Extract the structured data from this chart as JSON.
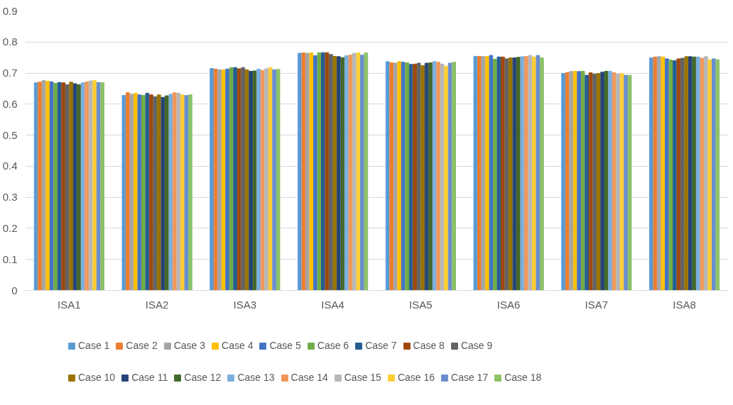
{
  "chart_data": {
    "type": "bar",
    "categories": [
      "ISA1",
      "ISA2",
      "ISA3",
      "ISA4",
      "ISA5",
      "ISA6",
      "ISA7",
      "ISA8"
    ],
    "ylim": [
      0,
      0.9
    ],
    "yticks": [
      0,
      0.1,
      0.2,
      0.3,
      0.4,
      0.5,
      0.6,
      0.7,
      0.8,
      0.9
    ],
    "grid": "y",
    "legend": "bottom",
    "series": [
      {
        "name": "Case 1",
        "color": "#5b9bd5",
        "values": [
          0.669,
          0.628,
          0.715,
          0.764,
          0.737,
          0.754,
          0.699,
          0.749
        ]
      },
      {
        "name": "Case 2",
        "color": "#ed7d31",
        "values": [
          0.671,
          0.637,
          0.713,
          0.765,
          0.733,
          0.754,
          0.702,
          0.752
        ]
      },
      {
        "name": "Case 3",
        "color": "#a5a5a5",
        "values": [
          0.676,
          0.632,
          0.711,
          0.764,
          0.732,
          0.753,
          0.705,
          0.753
        ]
      },
      {
        "name": "Case 4",
        "color": "#ffc000",
        "values": [
          0.674,
          0.635,
          0.71,
          0.765,
          0.737,
          0.754,
          0.706,
          0.752
        ]
      },
      {
        "name": "Case 5",
        "color": "#4472c4",
        "values": [
          0.672,
          0.63,
          0.713,
          0.756,
          0.735,
          0.757,
          0.705,
          0.746
        ]
      },
      {
        "name": "Case 6",
        "color": "#70ad47",
        "values": [
          0.667,
          0.628,
          0.718,
          0.765,
          0.733,
          0.745,
          0.706,
          0.742
        ]
      },
      {
        "name": "Case 7",
        "color": "#255e91",
        "values": [
          0.67,
          0.635,
          0.718,
          0.766,
          0.728,
          0.752,
          0.693,
          0.74
        ]
      },
      {
        "name": "Case 8",
        "color": "#9e480e",
        "values": [
          0.669,
          0.63,
          0.714,
          0.766,
          0.729,
          0.752,
          0.701,
          0.746
        ]
      },
      {
        "name": "Case 9",
        "color": "#636363",
        "values": [
          0.663,
          0.624,
          0.718,
          0.76,
          0.732,
          0.746,
          0.697,
          0.748
        ]
      },
      {
        "name": "Case 10",
        "color": "#997300",
        "values": [
          0.671,
          0.63,
          0.711,
          0.754,
          0.724,
          0.749,
          0.699,
          0.753
        ]
      },
      {
        "name": "Case 11",
        "color": "#264478",
        "values": [
          0.666,
          0.622,
          0.706,
          0.753,
          0.732,
          0.749,
          0.703,
          0.753
        ]
      },
      {
        "name": "Case 12",
        "color": "#43682b",
        "values": [
          0.663,
          0.627,
          0.707,
          0.75,
          0.733,
          0.751,
          0.706,
          0.752
        ]
      },
      {
        "name": "Case 13",
        "color": "#7cafdd",
        "values": [
          0.669,
          0.632,
          0.713,
          0.756,
          0.737,
          0.753,
          0.706,
          0.752
        ]
      },
      {
        "name": "Case 14",
        "color": "#f1975a",
        "values": [
          0.672,
          0.637,
          0.709,
          0.758,
          0.735,
          0.754,
          0.701,
          0.748
        ]
      },
      {
        "name": "Case 15",
        "color": "#b7b7b7",
        "values": [
          0.675,
          0.635,
          0.714,
          0.764,
          0.729,
          0.757,
          0.697,
          0.753
        ]
      },
      {
        "name": "Case 16",
        "color": "#ffcd33",
        "values": [
          0.676,
          0.63,
          0.718,
          0.765,
          0.722,
          0.752,
          0.699,
          0.743
        ]
      },
      {
        "name": "Case 17",
        "color": "#698ed0",
        "values": [
          0.67,
          0.628,
          0.711,
          0.758,
          0.732,
          0.757,
          0.693,
          0.746
        ]
      },
      {
        "name": "Case 18",
        "color": "#8cc168",
        "values": [
          0.669,
          0.63,
          0.712,
          0.765,
          0.735,
          0.749,
          0.693,
          0.743
        ]
      }
    ]
  }
}
